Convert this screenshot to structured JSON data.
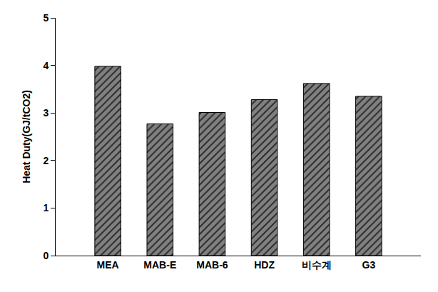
{
  "chart_data": {
    "type": "bar",
    "y_label": "Heat Duty(GJ/tCO2)",
    "categories": [
      "MEA",
      "MAB-E",
      "MAB-6",
      "HDZ",
      "비수계",
      "G3"
    ],
    "values": [
      3.98,
      2.77,
      3.01,
      3.28,
      3.62,
      3.35
    ],
    "color": "#808080",
    "ylim": [
      0,
      5
    ],
    "yticks": [
      0,
      1,
      2,
      3,
      4,
      5
    ],
    "grid": false
  }
}
